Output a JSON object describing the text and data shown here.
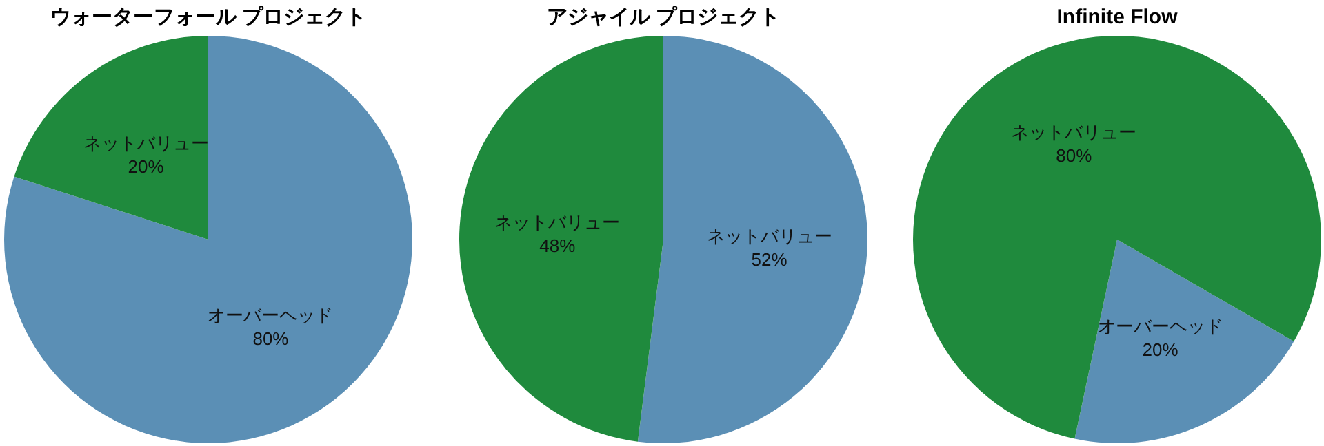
{
  "chart_data": [
    {
      "type": "pie",
      "title": "ウォーターフォール プロジェクト",
      "categories": [
        "オーバーヘッド",
        "ネットバリュー"
      ],
      "values": [
        80,
        20
      ],
      "colors": [
        "#5b8fb5",
        "#1f8a3d"
      ],
      "value_labels": [
        "80%",
        "20%"
      ]
    },
    {
      "type": "pie",
      "title": "アジャイル プロジェクト",
      "categories": [
        "ネットバリュー",
        "ネットバリュー"
      ],
      "values": [
        52,
        48
      ],
      "colors": [
        "#5b8fb5",
        "#1f8a3d"
      ],
      "value_labels": [
        "52%",
        "48%"
      ]
    },
    {
      "type": "pie",
      "title": "Infinite Flow",
      "categories": [
        "オーバーヘッド",
        "ネットバリュー"
      ],
      "values": [
        20,
        80
      ],
      "colors": [
        "#5b8fb5",
        "#1f8a3d"
      ],
      "value_labels": [
        "20%",
        "80%"
      ]
    }
  ]
}
